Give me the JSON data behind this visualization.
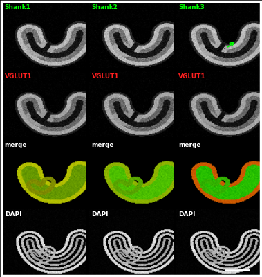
{
  "grid_rows": 4,
  "grid_cols": 3,
  "labels": [
    [
      "Shank1",
      "Shank2",
      "Shank3"
    ],
    [
      "VGLUT1",
      "VGLUT1",
      "VGLUT1"
    ],
    [
      "merge",
      "merge",
      "merge"
    ],
    [
      "DAPI",
      "DAPI",
      "DAPI"
    ]
  ],
  "label_colors": [
    [
      "#00ff00",
      "#00ff00",
      "#00ff00"
    ],
    [
      "#ff2020",
      "#ff2020",
      "#ff2020"
    ],
    [
      "#ffffff",
      "#ffffff",
      "#ffffff"
    ],
    [
      "#ffffff",
      "#ffffff",
      "#ffffff"
    ]
  ],
  "fig_bg": "#000000",
  "border_color": "#ffffff",
  "scale_bar_color": "#ffffff",
  "arrow_color": "#00ff00",
  "label_fontsize": 6.5,
  "label_fontweight": "bold"
}
